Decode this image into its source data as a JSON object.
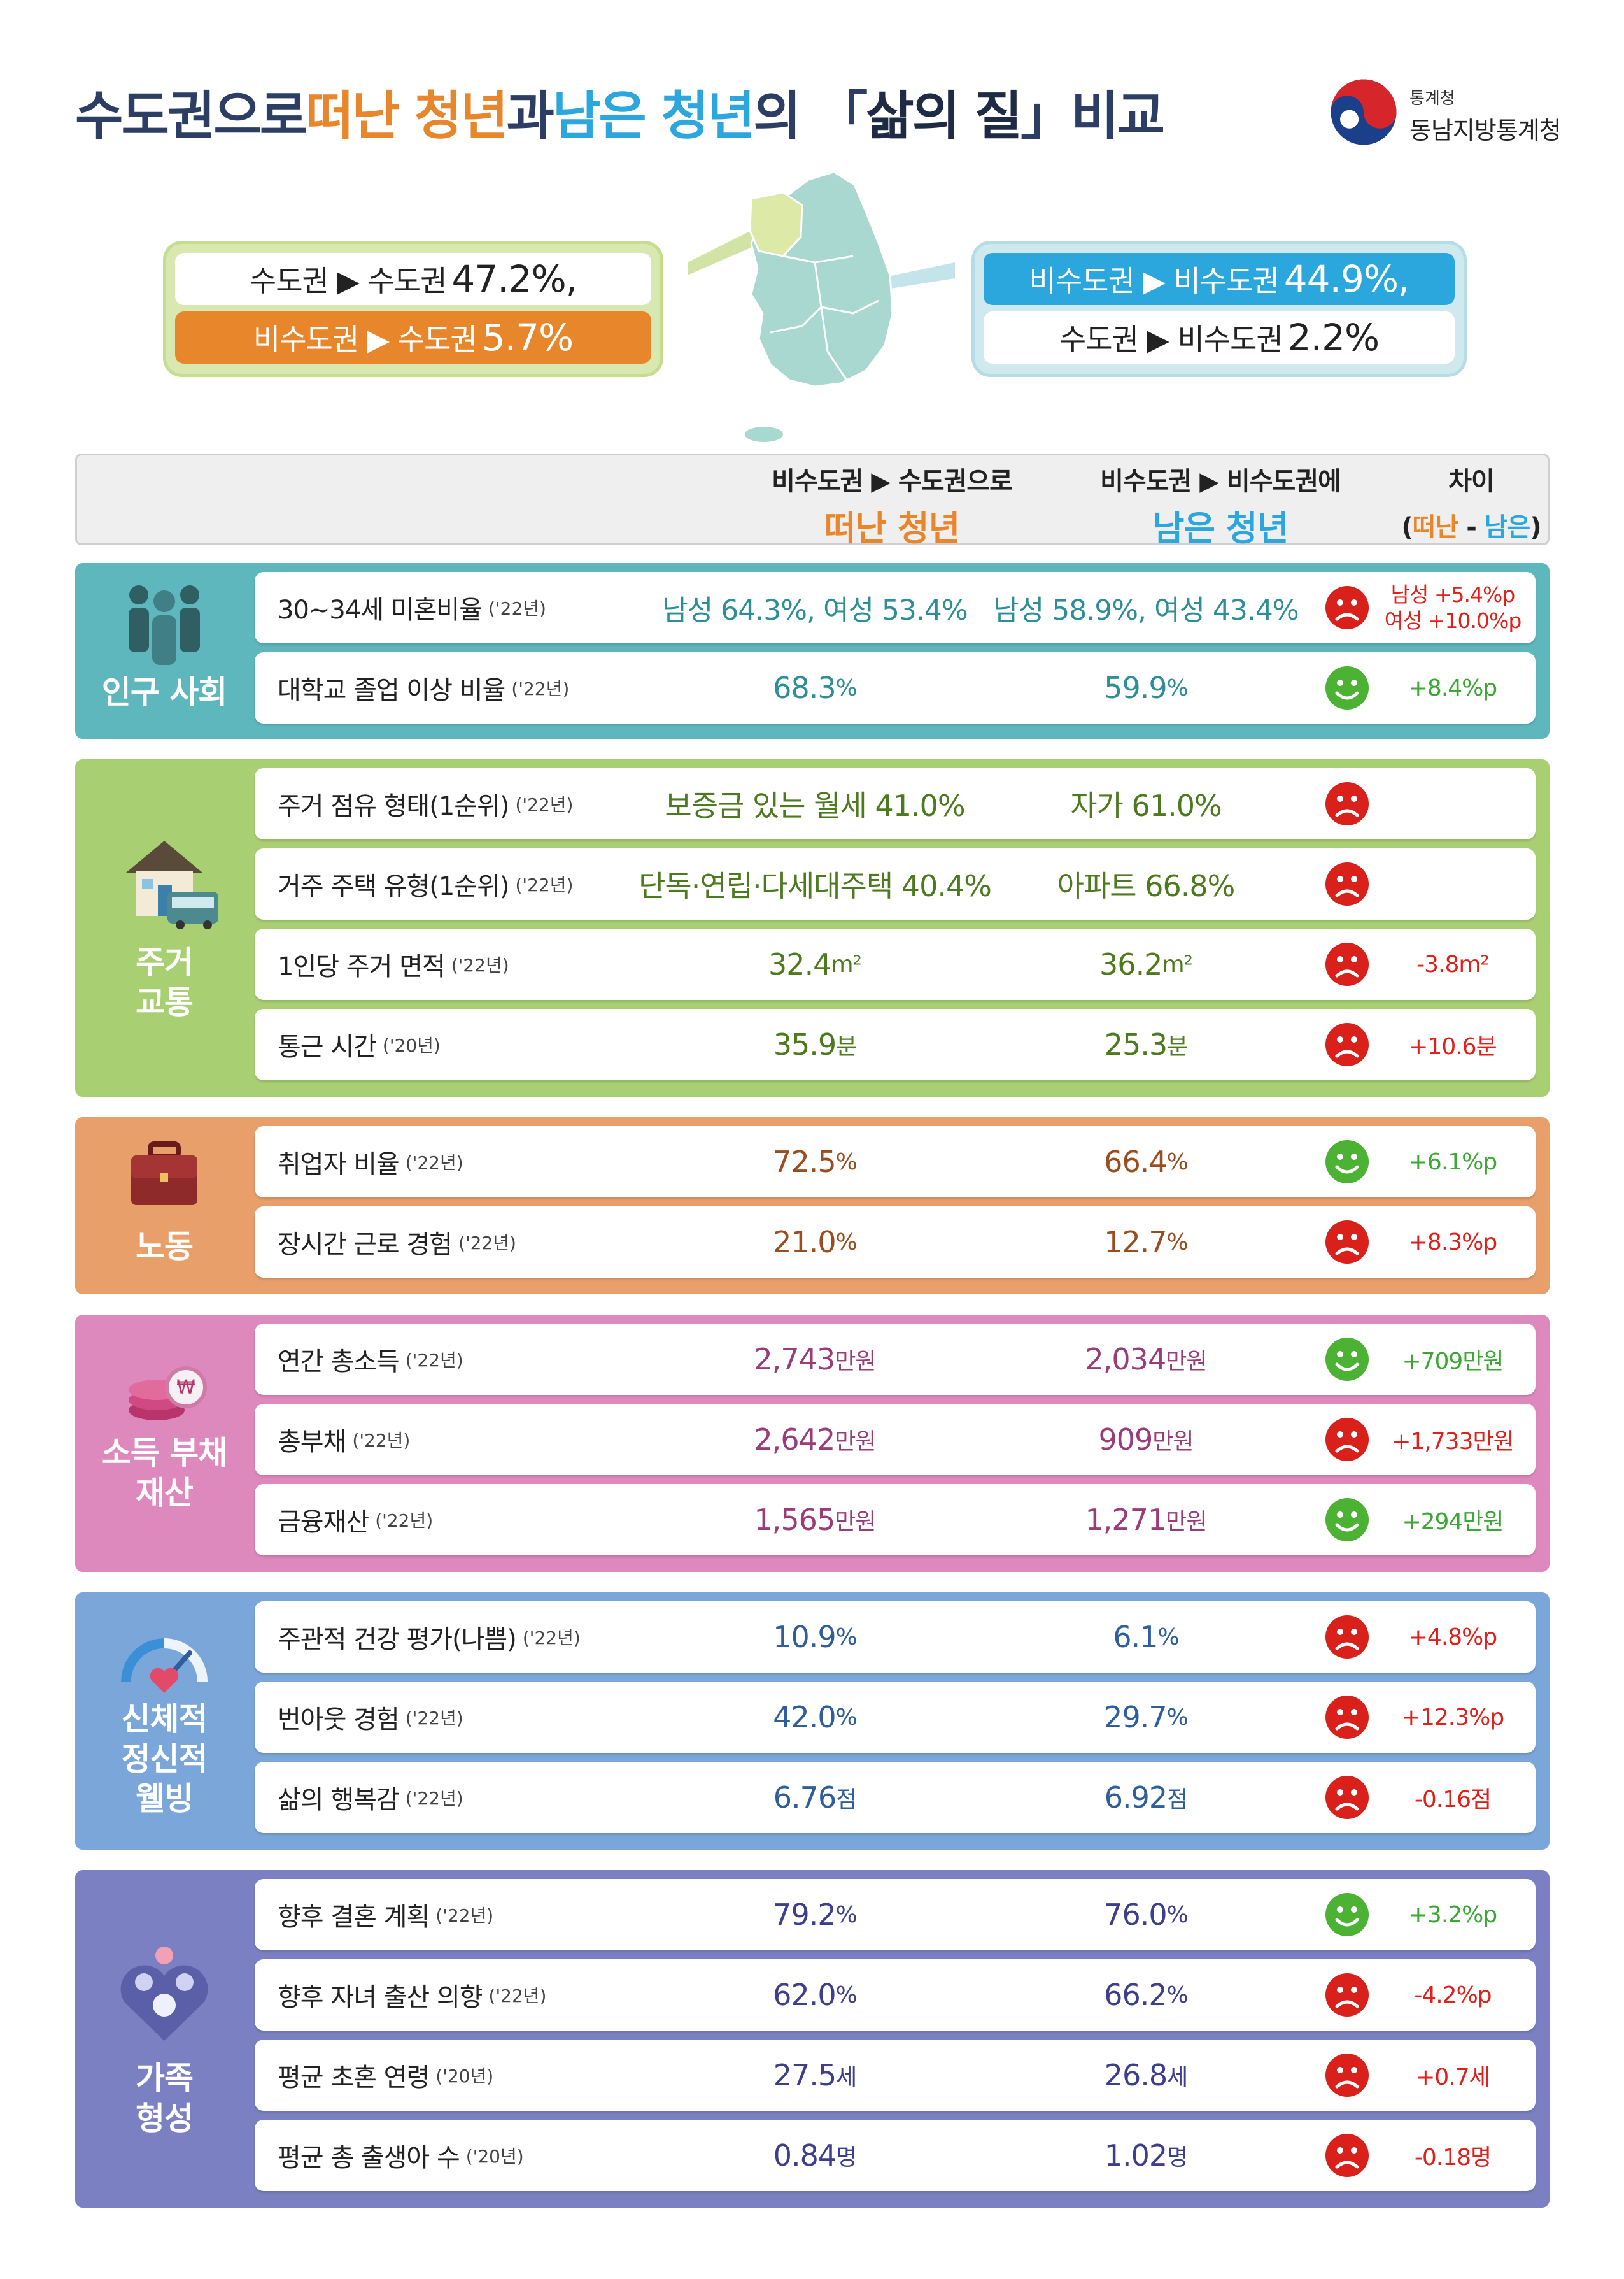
{
  "title": {
    "p1": "수도권으로 ",
    "p2": "떠난 청년",
    "p3": "과 ",
    "p4": "남은 청년",
    "p5": "의 「",
    "p6": "삶의 질",
    "p7": "」비교"
  },
  "logo": {
    "sub": "통계청",
    "main": "동남지방통계청"
  },
  "callout_left": {
    "row1_text": "수도권 ▶ 수도권",
    "row1_value": "47.2%,",
    "row2_text": "비수도권 ▶ 수도권",
    "row2_value": "5.7%"
  },
  "callout_right": {
    "row1_text": "비수도권 ▶ 비수도권",
    "row1_value": "44.9%,",
    "row2_text": "수도권 ▶ 비수도권",
    "row2_value": "2.2%"
  },
  "columns": {
    "c1_line1": "비수도권 ▶ 수도권으로",
    "c1_line2": "떠난 청년",
    "c2_line1": "비수도권 ▶ 비수도권에",
    "c2_line2": "남은 청년",
    "c3_line1": "차이",
    "c3_open": "(",
    "c3_left": "떠난",
    "c3_sep": " - ",
    "c3_right": "남은",
    "c3_close": ")"
  },
  "sections": {
    "s1": {
      "label": "인구 사회",
      "icon": "people-icon",
      "rows": [
        {
          "label": "30~34세 미혼비율",
          "year": "('22년)",
          "v1": "남성 64.3%, 여성 53.4%",
          "v2": "남성 58.9%, 여성 43.4%",
          "face": "sad",
          "diff": "남성 +5.4%p",
          "diff2": "여성 +10.0%p"
        },
        {
          "label": "대학교 졸업 이상 비율",
          "year": "('22년)",
          "v1": "68.3",
          "v1u": "%",
          "v2": "59.9",
          "v2u": "%",
          "face": "happy",
          "diff": "+8.4%p"
        }
      ]
    },
    "s2": {
      "label1": "주거",
      "label2": "교통",
      "icon": "house-bus-icon",
      "rows": [
        {
          "label": "주거 점유 형태(1순위)",
          "year": "('22년)",
          "v1": "보증금 있는 월세 41.0%",
          "v2": "자가 61.0%",
          "face": "sad",
          "diff": ""
        },
        {
          "label": "거주 주택 유형(1순위)",
          "year": "('22년)",
          "v1": "단독·연립·다세대주택 40.4%",
          "v2": "아파트 66.8%",
          "face": "sad",
          "diff": ""
        },
        {
          "label": "1인당 주거 면적",
          "year": "('22년)",
          "v1": "32.4",
          "v1u": "m²",
          "v2": "36.2",
          "v2u": "m²",
          "face": "sad",
          "diff": "-3.8m²"
        },
        {
          "label": "통근 시간",
          "year": "('20년)",
          "v1": "35.9",
          "v1u": "분",
          "v2": "25.3",
          "v2u": "분",
          "face": "sad",
          "diff": "+10.6분"
        }
      ]
    },
    "s3": {
      "label": "노동",
      "icon": "briefcase-icon",
      "rows": [
        {
          "label": "취업자 비율",
          "year": "('22년)",
          "v1": "72.5",
          "v1u": "%",
          "v2": "66.4",
          "v2u": "%",
          "face": "happy",
          "diff": "+6.1%p"
        },
        {
          "label": "장시간 근로 경험",
          "year": "('22년)",
          "v1": "21.0",
          "v1u": "%",
          "v2": "12.7",
          "v2u": "%",
          "face": "sad",
          "diff": "+8.3%p"
        }
      ]
    },
    "s4": {
      "label1": "소득 부채",
      "label2": "재산",
      "icon": "coins-icon",
      "rows": [
        {
          "label": "연간 총소득",
          "year": "('22년)",
          "v1": "2,743",
          "v1u": "만원",
          "v2": "2,034",
          "v2u": "만원",
          "face": "happy",
          "diff": "+709만원"
        },
        {
          "label": "총부채",
          "year": "('22년)",
          "v1": "2,642",
          "v1u": "만원",
          "v2": "909",
          "v2u": "만원",
          "face": "sad",
          "diff": "+1,733만원"
        },
        {
          "label": "금융재산",
          "year": "('22년)",
          "v1": "1,565",
          "v1u": "만원",
          "v2": "1,271",
          "v2u": "만원",
          "face": "happy",
          "diff": "+294만원"
        }
      ]
    },
    "s5": {
      "label1": "신체적",
      "label2": "정신적",
      "label3": "웰빙",
      "icon": "gauge-heart-icon",
      "rows": [
        {
          "label": "주관적 건강 평가(나쁨)",
          "year": "('22년)",
          "v1": "10.9",
          "v1u": "%",
          "v2": "6.1",
          "v2u": "%",
          "face": "sad",
          "diff": "+4.8%p"
        },
        {
          "label": "번아웃 경험",
          "year": "('22년)",
          "v1": "42.0",
          "v1u": "%",
          "v2": "29.7",
          "v2u": "%",
          "face": "sad",
          "diff": "+12.3%p"
        },
        {
          "label": "삶의 행복감",
          "year": "('22년)",
          "v1": "6.76",
          "v1u": "점",
          "v2": "6.92",
          "v2u": "점",
          "face": "sad",
          "diff": "-0.16점"
        }
      ]
    },
    "s6": {
      "label1": "가족",
      "label2": "형성",
      "icon": "family-heart-icon",
      "rows": [
        {
          "label": "향후 결혼 계획",
          "year": "('22년)",
          "v1": "79.2",
          "v1u": "%",
          "v2": "76.0",
          "v2u": "%",
          "face": "happy",
          "diff": "+3.2%p"
        },
        {
          "label": "향후 자녀 출산 의향",
          "year": "('22년)",
          "v1": "62.0",
          "v1u": "%",
          "v2": "66.2",
          "v2u": "%",
          "face": "sad",
          "diff": "-4.2%p"
        },
        {
          "label": "평균 초혼 연령",
          "year": "('20년)",
          "v1": "27.5",
          "v1u": "세",
          "v2": "26.8",
          "v2u": "세",
          "face": "sad",
          "diff": "+0.7세"
        },
        {
          "label": "평균 총 출생아 수",
          "year": "('20년)",
          "v1": "0.84",
          "v1u": "명",
          "v2": "1.02",
          "v2u": "명",
          "face": "sad",
          "diff": "-0.18명"
        }
      ]
    }
  },
  "colors": {
    "orange": "#e8862c",
    "blue": "#2ca7dd",
    "sad_red": "#d9201b",
    "happy_green": "#4cb233",
    "s1": "#5eb7bd",
    "s2": "#a9cf73",
    "s3": "#e89f6a",
    "s4": "#de89bd",
    "s5": "#7aa6d9",
    "s6": "#7b80c2"
  }
}
